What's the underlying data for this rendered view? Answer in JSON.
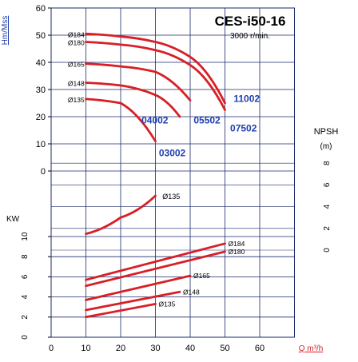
{
  "chart_data": [
    {
      "type": "line",
      "panel": "head",
      "title": "CES-i50-16",
      "subtitle": "3000 r/min.",
      "ylabel": "Hm/Mss",
      "xlabel": "Q m³/h",
      "ylim": [
        0,
        60
      ],
      "yticks": [
        "0",
        "10",
        "20",
        "30",
        "40",
        "50",
        "60"
      ],
      "series": [
        {
          "name": "Ø184",
          "x": [
            10,
            20,
            30,
            40,
            50
          ],
          "y": [
            50.5,
            49.5,
            47.5,
            42,
            25
          ]
        },
        {
          "name": "Ø180",
          "x": [
            10,
            20,
            30,
            40,
            50
          ],
          "y": [
            47.5,
            46.5,
            44.5,
            39,
            22.5
          ]
        },
        {
          "name": "Ø165",
          "x": [
            10,
            20,
            30,
            40
          ],
          "y": [
            39.5,
            38.5,
            36.5,
            26
          ]
        },
        {
          "name": "Ø148",
          "x": [
            10,
            20,
            30,
            37
          ],
          "y": [
            32.5,
            31.5,
            28,
            20
          ]
        },
        {
          "name": "Ø135",
          "x": [
            10,
            20,
            30
          ],
          "y": [
            26.5,
            25,
            11
          ]
        }
      ],
      "annotations": [
        "11002",
        "04002",
        "05502",
        "07502",
        "03002"
      ]
    },
    {
      "type": "line",
      "panel": "npsh",
      "ylabel": "NPSH (m)",
      "ylim": [
        0,
        8
      ],
      "yticks": [
        "0",
        "2",
        "4",
        "6",
        "8"
      ],
      "series": [
        {
          "name": "Ø135",
          "x": [
            10,
            20,
            30
          ],
          "y": [
            1.5,
            3,
            5
          ]
        }
      ]
    },
    {
      "type": "line",
      "panel": "power",
      "ylabel": "KW",
      "xlabel": "Q m³/h",
      "xlim": [
        0,
        70
      ],
      "xticks": [
        "0",
        "10",
        "20",
        "30",
        "40",
        "50",
        "60"
      ],
      "ylim": [
        0,
        10
      ],
      "yticks": [
        "0",
        "2",
        "4",
        "6",
        "8",
        "10"
      ],
      "series": [
        {
          "name": "Ø184",
          "x": [
            10,
            50
          ],
          "y": [
            5.7,
            9.3
          ]
        },
        {
          "name": "Ø180",
          "x": [
            10,
            50
          ],
          "y": [
            5.1,
            8.5
          ]
        },
        {
          "name": "Ø165",
          "x": [
            10,
            40
          ],
          "y": [
            3.7,
            6.1
          ]
        },
        {
          "name": "Ø148",
          "x": [
            10,
            37
          ],
          "y": [
            2.7,
            4.5
          ]
        },
        {
          "name": "Ø135",
          "x": [
            10,
            30
          ],
          "y": [
            2.0,
            3.3
          ]
        }
      ]
    }
  ],
  "colors": {
    "curve": "#d81f26",
    "label_blue": "#1f3fae",
    "grid": "#1a2a6c",
    "axis": "#000000"
  }
}
